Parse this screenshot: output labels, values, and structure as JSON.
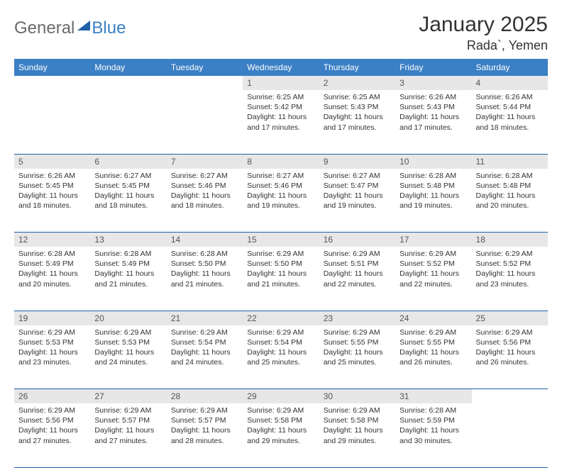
{
  "logo": {
    "part1": "General",
    "part2": "Blue"
  },
  "title": "January 2025",
  "location": "Rada`, Yemen",
  "colors": {
    "header_bg": "#3b7fc4",
    "daynum_bg": "#e7e7e7",
    "border": "#1f5fa8",
    "text": "#333333"
  },
  "weekdays": [
    "Sunday",
    "Monday",
    "Tuesday",
    "Wednesday",
    "Thursday",
    "Friday",
    "Saturday"
  ],
  "weeks": [
    [
      null,
      null,
      null,
      {
        "n": "1",
        "sr": "6:25 AM",
        "ss": "5:42 PM",
        "dl": "11 hours and 17 minutes."
      },
      {
        "n": "2",
        "sr": "6:25 AM",
        "ss": "5:43 PM",
        "dl": "11 hours and 17 minutes."
      },
      {
        "n": "3",
        "sr": "6:26 AM",
        "ss": "5:43 PM",
        "dl": "11 hours and 17 minutes."
      },
      {
        "n": "4",
        "sr": "6:26 AM",
        "ss": "5:44 PM",
        "dl": "11 hours and 18 minutes."
      }
    ],
    [
      {
        "n": "5",
        "sr": "6:26 AM",
        "ss": "5:45 PM",
        "dl": "11 hours and 18 minutes."
      },
      {
        "n": "6",
        "sr": "6:27 AM",
        "ss": "5:45 PM",
        "dl": "11 hours and 18 minutes."
      },
      {
        "n": "7",
        "sr": "6:27 AM",
        "ss": "5:46 PM",
        "dl": "11 hours and 18 minutes."
      },
      {
        "n": "8",
        "sr": "6:27 AM",
        "ss": "5:46 PM",
        "dl": "11 hours and 19 minutes."
      },
      {
        "n": "9",
        "sr": "6:27 AM",
        "ss": "5:47 PM",
        "dl": "11 hours and 19 minutes."
      },
      {
        "n": "10",
        "sr": "6:28 AM",
        "ss": "5:48 PM",
        "dl": "11 hours and 19 minutes."
      },
      {
        "n": "11",
        "sr": "6:28 AM",
        "ss": "5:48 PM",
        "dl": "11 hours and 20 minutes."
      }
    ],
    [
      {
        "n": "12",
        "sr": "6:28 AM",
        "ss": "5:49 PM",
        "dl": "11 hours and 20 minutes."
      },
      {
        "n": "13",
        "sr": "6:28 AM",
        "ss": "5:49 PM",
        "dl": "11 hours and 21 minutes."
      },
      {
        "n": "14",
        "sr": "6:28 AM",
        "ss": "5:50 PM",
        "dl": "11 hours and 21 minutes."
      },
      {
        "n": "15",
        "sr": "6:29 AM",
        "ss": "5:50 PM",
        "dl": "11 hours and 21 minutes."
      },
      {
        "n": "16",
        "sr": "6:29 AM",
        "ss": "5:51 PM",
        "dl": "11 hours and 22 minutes."
      },
      {
        "n": "17",
        "sr": "6:29 AM",
        "ss": "5:52 PM",
        "dl": "11 hours and 22 minutes."
      },
      {
        "n": "18",
        "sr": "6:29 AM",
        "ss": "5:52 PM",
        "dl": "11 hours and 23 minutes."
      }
    ],
    [
      {
        "n": "19",
        "sr": "6:29 AM",
        "ss": "5:53 PM",
        "dl": "11 hours and 23 minutes."
      },
      {
        "n": "20",
        "sr": "6:29 AM",
        "ss": "5:53 PM",
        "dl": "11 hours and 24 minutes."
      },
      {
        "n": "21",
        "sr": "6:29 AM",
        "ss": "5:54 PM",
        "dl": "11 hours and 24 minutes."
      },
      {
        "n": "22",
        "sr": "6:29 AM",
        "ss": "5:54 PM",
        "dl": "11 hours and 25 minutes."
      },
      {
        "n": "23",
        "sr": "6:29 AM",
        "ss": "5:55 PM",
        "dl": "11 hours and 25 minutes."
      },
      {
        "n": "24",
        "sr": "6:29 AM",
        "ss": "5:55 PM",
        "dl": "11 hours and 26 minutes."
      },
      {
        "n": "25",
        "sr": "6:29 AM",
        "ss": "5:56 PM",
        "dl": "11 hours and 26 minutes."
      }
    ],
    [
      {
        "n": "26",
        "sr": "6:29 AM",
        "ss": "5:56 PM",
        "dl": "11 hours and 27 minutes."
      },
      {
        "n": "27",
        "sr": "6:29 AM",
        "ss": "5:57 PM",
        "dl": "11 hours and 27 minutes."
      },
      {
        "n": "28",
        "sr": "6:29 AM",
        "ss": "5:57 PM",
        "dl": "11 hours and 28 minutes."
      },
      {
        "n": "29",
        "sr": "6:29 AM",
        "ss": "5:58 PM",
        "dl": "11 hours and 29 minutes."
      },
      {
        "n": "30",
        "sr": "6:29 AM",
        "ss": "5:58 PM",
        "dl": "11 hours and 29 minutes."
      },
      {
        "n": "31",
        "sr": "6:28 AM",
        "ss": "5:59 PM",
        "dl": "11 hours and 30 minutes."
      },
      null
    ]
  ],
  "labels": {
    "sunrise": "Sunrise:",
    "sunset": "Sunset:",
    "daylight": "Daylight:"
  }
}
